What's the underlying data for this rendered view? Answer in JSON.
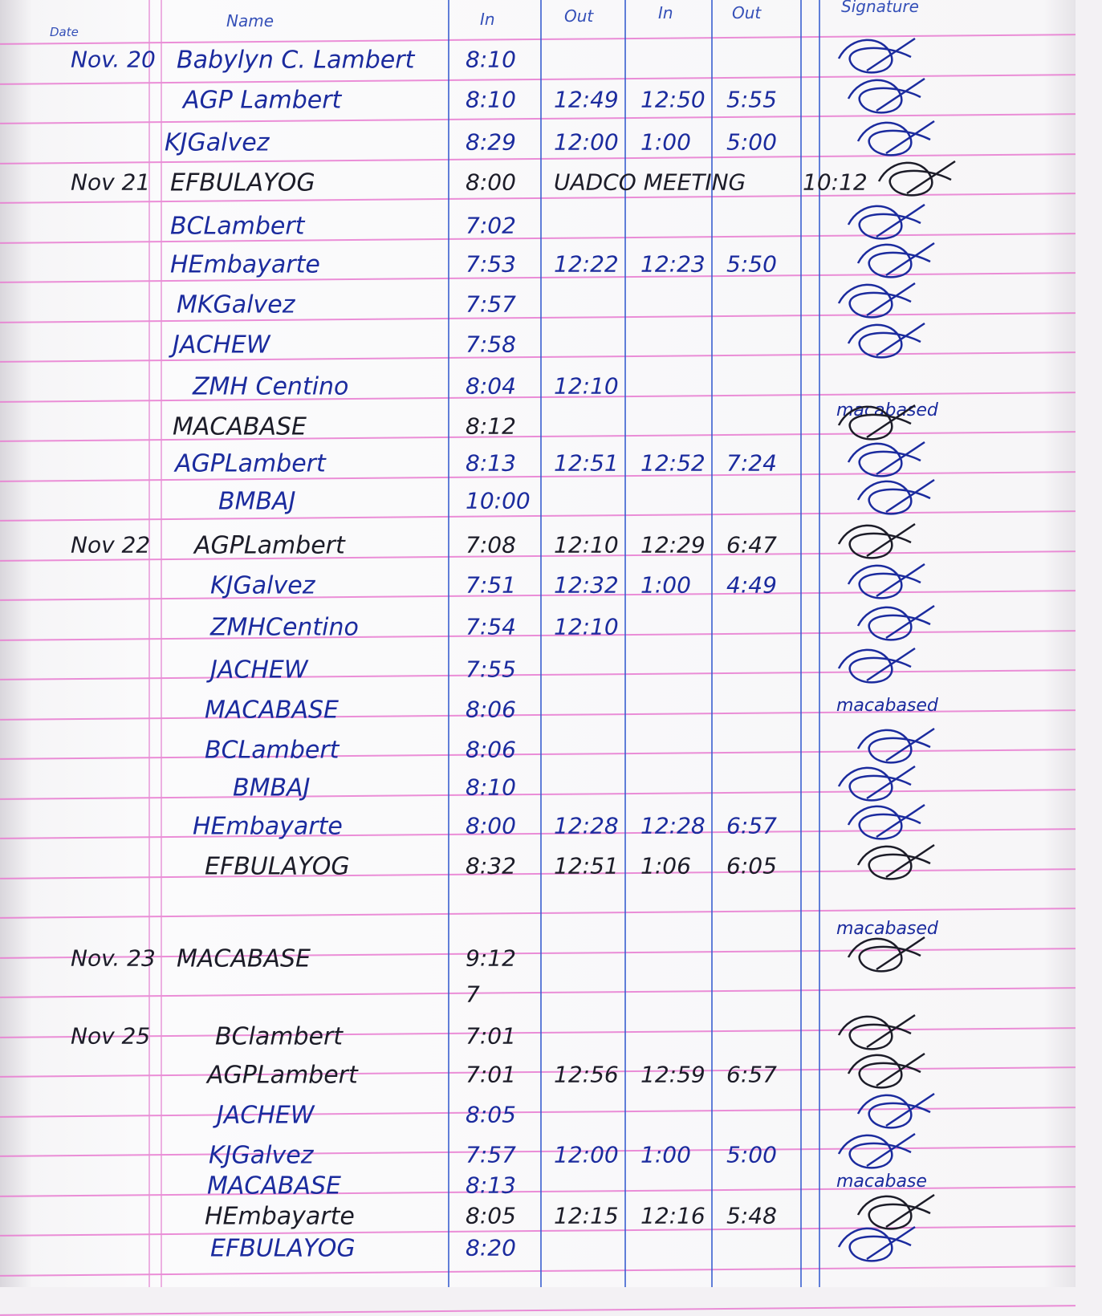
{
  "headers": {
    "date": "Date",
    "name": "Name",
    "in1": "In",
    "out1": "Out",
    "in2": "In",
    "out2": "Out",
    "signature": "Signature"
  },
  "colors": {
    "blue_ink": "#1b2b9e",
    "black_ink": "#1c1c28",
    "rule_pink": "#e77ad0",
    "column_blue": "#3a5fd0"
  },
  "entries": [
    {
      "date": "Nov. 20",
      "name": "Babylyn C. Lambert",
      "in1": "8:10",
      "out1": "",
      "in2": "",
      "out2": "",
      "signature": "",
      "ink": "blue"
    },
    {
      "date": "",
      "name": "AGP Lambert",
      "in1": "8:10",
      "out1": "12:49",
      "in2": "12:50",
      "out2": "5:55",
      "signature": "",
      "ink": "blue"
    },
    {
      "date": "",
      "name": "KJGalvez",
      "in1": "8:29",
      "out1": "12:00",
      "in2": "1:00",
      "out2": "5:00",
      "signature": "",
      "ink": "blue"
    },
    {
      "date": "Nov 21",
      "name": "EFBULAYOG",
      "in1": "8:00",
      "out1": "UADCO MEETING",
      "in2": "",
      "out2": "10:12",
      "signature": "",
      "ink": "black"
    },
    {
      "date": "",
      "name": "BCLambert",
      "in1": "7:02",
      "out1": "",
      "in2": "",
      "out2": "",
      "signature": "",
      "ink": "blue"
    },
    {
      "date": "",
      "name": "HEmbayarte",
      "in1": "7:53",
      "out1": "12:22",
      "in2": "12:23",
      "out2": "5:50",
      "signature": "",
      "ink": "blue"
    },
    {
      "date": "",
      "name": "MKGalvez",
      "in1": "7:57",
      "out1": "",
      "in2": "",
      "out2": "",
      "signature": "",
      "ink": "blue"
    },
    {
      "date": "",
      "name": "JACHEW",
      "in1": "7:58",
      "out1": "",
      "in2": "",
      "out2": "",
      "signature": "",
      "ink": "blue"
    },
    {
      "date": "",
      "name": "ZMH Centino",
      "in1": "8:04",
      "out1": "12:10",
      "in2": "",
      "out2": "",
      "signature": "macabased",
      "ink": "blue"
    },
    {
      "date": "",
      "name": "MACABASE",
      "in1": "8:12",
      "out1": "",
      "in2": "",
      "out2": "",
      "signature": "",
      "ink": "black"
    },
    {
      "date": "",
      "name": "AGPLambert",
      "in1": "8:13",
      "out1": "12:51",
      "in2": "12:52",
      "out2": "7:24",
      "signature": "",
      "ink": "blue"
    },
    {
      "date": "",
      "name": "BMBAJ",
      "in1": "10:00",
      "out1": "",
      "in2": "",
      "out2": "",
      "signature": "",
      "ink": "blue"
    },
    {
      "date": "Nov 22",
      "name": "AGPLambert",
      "in1": "7:08",
      "out1": "12:10",
      "in2": "12:29",
      "out2": "6:47",
      "signature": "",
      "ink": "black"
    },
    {
      "date": "",
      "name": "KJGalvez",
      "in1": "7:51",
      "out1": "12:32",
      "in2": "1:00",
      "out2": "4:49",
      "signature": "",
      "ink": "blue"
    },
    {
      "date": "",
      "name": "ZMHCentino",
      "in1": "7:54",
      "out1": "12:10",
      "in2": "",
      "out2": "",
      "signature": "",
      "ink": "blue"
    },
    {
      "date": "",
      "name": "JACHEW",
      "in1": "7:55",
      "out1": "",
      "in2": "",
      "out2": "",
      "signature": "",
      "ink": "blue"
    },
    {
      "date": "",
      "name": "MACABASE",
      "in1": "8:06",
      "out1": "",
      "in2": "",
      "out2": "",
      "signature": "macabased",
      "ink": "blue"
    },
    {
      "date": "",
      "name": "BCLambert",
      "in1": "8:06",
      "out1": "",
      "in2": "",
      "out2": "",
      "signature": "",
      "ink": "blue"
    },
    {
      "date": "",
      "name": "BMBAJ",
      "in1": "8:10",
      "out1": "",
      "in2": "",
      "out2": "",
      "signature": "",
      "ink": "blue"
    },
    {
      "date": "",
      "name": "HEmbayarte",
      "in1": "8:00",
      "out1": "12:28",
      "in2": "12:28",
      "out2": "6:57",
      "signature": "",
      "ink": "blue"
    },
    {
      "date": "",
      "name": "EFBULAYOG",
      "in1": "8:32",
      "out1": "12:51",
      "in2": "1:06",
      "out2": "6:05",
      "signature": "",
      "ink": "black"
    },
    {
      "date": "",
      "name": "",
      "in1": "",
      "out1": "",
      "in2": "",
      "out2": "",
      "signature": "macabased",
      "ink": "black"
    },
    {
      "date": "Nov. 23",
      "name": "MACABASE",
      "in1": "9:12",
      "out1": "",
      "in2": "",
      "out2": "",
      "signature": "",
      "ink": "black"
    },
    {
      "date": "",
      "name": "",
      "in1": "7",
      "out1": "",
      "in2": "",
      "out2": "",
      "signature": "",
      "ink": "black"
    },
    {
      "date": "Nov 25",
      "name": "BClambert",
      "in1": "7:01",
      "out1": "",
      "in2": "",
      "out2": "",
      "signature": "",
      "ink": "black"
    },
    {
      "date": "",
      "name": "AGPLambert",
      "in1": "7:01",
      "out1": "12:56",
      "in2": "12:59",
      "out2": "6:57",
      "signature": "",
      "ink": "black"
    },
    {
      "date": "",
      "name": "JACHEW",
      "in1": "8:05",
      "out1": "",
      "in2": "",
      "out2": "",
      "signature": "",
      "ink": "blue"
    },
    {
      "date": "",
      "name": "KJGalvez",
      "in1": "7:57",
      "out1": "12:00",
      "in2": "1:00",
      "out2": "5:00",
      "signature": "",
      "ink": "blue"
    },
    {
      "date": "",
      "name": "MACABASE",
      "in1": "8:13",
      "out1": "",
      "in2": "",
      "out2": "",
      "signature": "macabase",
      "ink": "blue"
    },
    {
      "date": "",
      "name": "HEmbayarte",
      "in1": "8:05",
      "out1": "12:15",
      "in2": "12:16",
      "out2": "5:48",
      "signature": "",
      "ink": "black"
    },
    {
      "date": "",
      "name": "EFBULAYOG",
      "in1": "8:20",
      "out1": "",
      "in2": "",
      "out2": "",
      "signature": "",
      "ink": "blue"
    }
  ]
}
